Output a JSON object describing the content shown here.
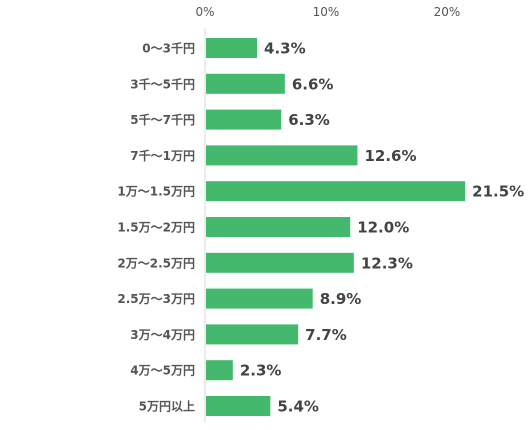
{
  "chart_data": {
    "type": "bar",
    "orientation": "horizontal",
    "categories": [
      "0～3千円",
      "3千～5千円",
      "5千～7千円",
      "7千～1万円",
      "1万～1.5万円",
      "1.5万～2万円",
      "2万～2.5万円",
      "2.5万～3万円",
      "3万～4万円",
      "4万～5万円",
      "5万円以上"
    ],
    "values": [
      4.3,
      6.6,
      6.3,
      12.6,
      21.5,
      12.0,
      12.3,
      8.9,
      7.7,
      2.3,
      5.4
    ],
    "value_labels": [
      "4.3%",
      "6.6%",
      "6.3%",
      "12.6%",
      "21.5%",
      "12.0%",
      "12.3%",
      "8.9%",
      "7.7%",
      "2.3%",
      "5.4%"
    ],
    "xlim": [
      0,
      22
    ],
    "x_ticks": [
      0,
      10,
      20
    ],
    "x_tick_labels": [
      "0%",
      "10%",
      "20%"
    ],
    "x_axis_position": "top",
    "grid": false,
    "legend": "none",
    "bar_color": "#44b86d"
  }
}
